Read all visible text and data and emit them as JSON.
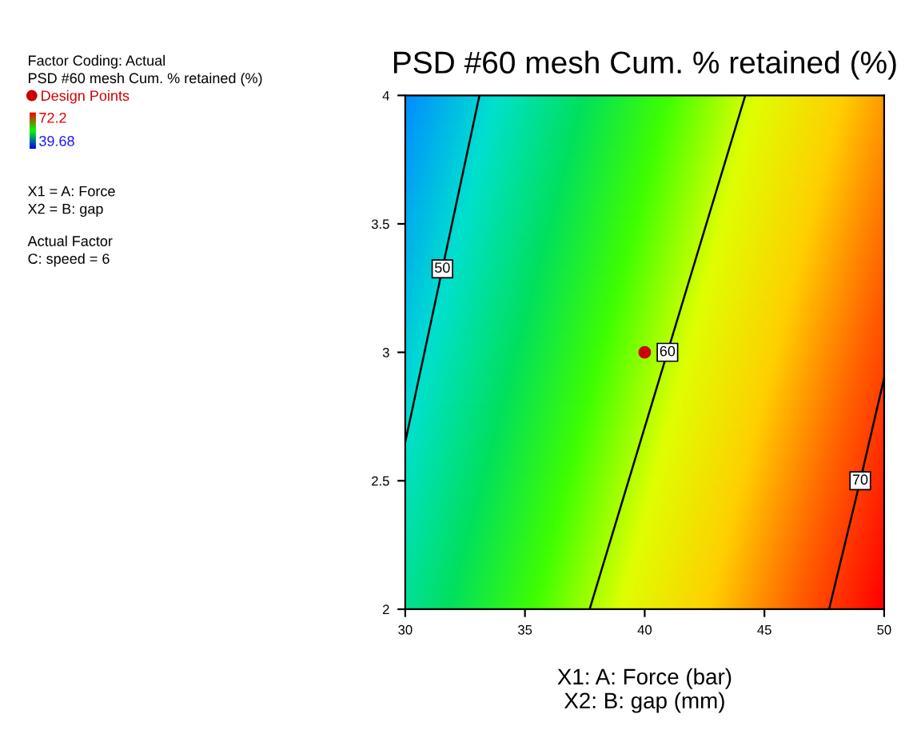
{
  "chart_data": {
    "type": "line",
    "title": "PSD #60 mesh Cum. % retained (%)",
    "xlabel": "X1: A: Force (bar)\nX2: B: gap (mm)",
    "xlim": [
      30,
      50
    ],
    "ylim": [
      2,
      4
    ],
    "xticks": [
      30,
      35,
      40,
      45,
      50
    ],
    "yticks": [
      2,
      2.5,
      3,
      3.5,
      4
    ],
    "series": [
      {
        "name": "50",
        "color": "#000000",
        "x": [
          30,
          33.1
        ],
        "values": [
          2.65,
          4
        ]
      },
      {
        "name": "60",
        "color": "#000000",
        "x": [
          37.7,
          44.2
        ],
        "values": [
          2,
          4
        ]
      },
      {
        "name": "70",
        "color": "#000000",
        "x": [
          47.7,
          49.0,
          50
        ],
        "values": [
          2,
          2.5,
          2.9
        ]
      },
      {
        "type": "scatter",
        "name": "Design Points",
        "color": "#cc0000",
        "x": [
          40
        ],
        "values": [
          3
        ]
      }
    ],
    "legend": "left",
    "grid": false,
    "annotations": [
      "Factor Coding: Actual",
      "PSD #60 mesh Cum. % retained (%)",
      "72.2",
      "39.68",
      "X1 = A: Force",
      "X2 = B: gap",
      "Actual Factor",
      "C: speed = 6"
    ]
  }
}
